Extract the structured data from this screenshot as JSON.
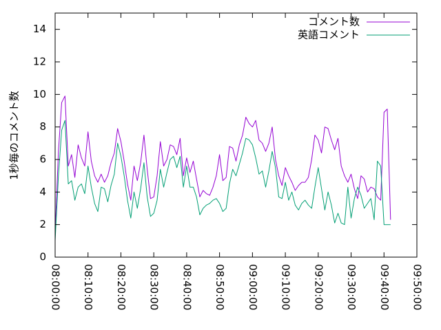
{
  "chart_data": {
    "type": "line",
    "title": "",
    "xlabel": "",
    "ylabel": "1秒毎のコメント数",
    "ylim": [
      0,
      15
    ],
    "yticks": [
      0,
      2,
      4,
      6,
      8,
      10,
      12,
      14
    ],
    "xlim": [
      "08:00:00",
      "09:50:00"
    ],
    "xticks": [
      "08:00:00",
      "08:10:00",
      "08:20:00",
      "08:30:00",
      "08:40:00",
      "08:50:00",
      "09:00:00",
      "09:10:00",
      "09:20:00",
      "09:30:00",
      "09:40:00",
      "09:50:00"
    ],
    "grid": false,
    "legend_position": "top-right",
    "x": [
      "08:00:00",
      "08:01:00",
      "08:02:00",
      "08:03:00",
      "08:04:00",
      "08:05:00",
      "08:06:00",
      "08:07:00",
      "08:08:00",
      "08:09:00",
      "08:10:00",
      "08:11:00",
      "08:12:00",
      "08:13:00",
      "08:14:00",
      "08:15:00",
      "08:16:00",
      "08:17:00",
      "08:18:00",
      "08:19:00",
      "08:20:00",
      "08:21:00",
      "08:22:00",
      "08:23:00",
      "08:24:00",
      "08:25:00",
      "08:26:00",
      "08:27:00",
      "08:28:00",
      "08:29:00",
      "08:30:00",
      "08:31:00",
      "08:32:00",
      "08:33:00",
      "08:34:00",
      "08:35:00",
      "08:36:00",
      "08:37:00",
      "08:38:00",
      "08:39:00",
      "08:40:00",
      "08:41:00",
      "08:42:00",
      "08:43:00",
      "08:44:00",
      "08:45:00",
      "08:46:00",
      "08:47:00",
      "08:48:00",
      "08:49:00",
      "08:50:00",
      "08:51:00",
      "08:52:00",
      "08:53:00",
      "08:54:00",
      "08:55:00",
      "08:56:00",
      "08:57:00",
      "08:58:00",
      "08:59:00",
      "09:00:00",
      "09:01:00",
      "09:02:00",
      "09:03:00",
      "09:04:00",
      "09:05:00",
      "09:06:00",
      "09:07:00",
      "09:08:00",
      "09:09:00",
      "09:10:00",
      "09:11:00",
      "09:12:00",
      "09:13:00",
      "09:14:00",
      "09:15:00",
      "09:16:00",
      "09:17:00",
      "09:18:00",
      "09:19:00",
      "09:20:00",
      "09:21:00",
      "09:22:00",
      "09:23:00",
      "09:24:00",
      "09:25:00",
      "09:26:00",
      "09:27:00",
      "09:28:00",
      "09:29:00",
      "09:30:00",
      "09:31:00",
      "09:32:00",
      "09:33:00",
      "09:34:00",
      "09:35:00",
      "09:36:00",
      "09:37:00",
      "09:38:00",
      "09:39:00",
      "09:40:00",
      "09:41:00",
      "09:42:00"
    ],
    "series": [
      {
        "name": "コメント数",
        "color": "#9400d3",
        "values": [
          1.5,
          6.5,
          9.5,
          9.9,
          5.6,
          6.3,
          4.9,
          6.9,
          6.1,
          5.6,
          7.7,
          5.9,
          5.0,
          4.6,
          5.1,
          4.6,
          5.0,
          5.8,
          6.4,
          7.9,
          7.1,
          5.9,
          4.5,
          3.5,
          5.6,
          4.7,
          5.8,
          7.5,
          5.4,
          3.6,
          3.7,
          5.0,
          7.1,
          5.6,
          6.0,
          6.9,
          6.8,
          6.3,
          7.3,
          5.0,
          6.1,
          5.2,
          5.9,
          4.8,
          3.7,
          4.1,
          3.9,
          3.8,
          4.3,
          5.0,
          6.3,
          4.7,
          4.9,
          6.8,
          6.7,
          5.9,
          6.9,
          7.5,
          8.6,
          8.2,
          8.0,
          8.4,
          7.2,
          7.0,
          6.5,
          7.0,
          8.0,
          6.0,
          5.0,
          4.4,
          5.5,
          5.0,
          4.6,
          4.1,
          4.4,
          4.6,
          4.6,
          4.9,
          6.0,
          7.5,
          7.2,
          6.4,
          8.0,
          7.9,
          7.2,
          6.6,
          7.3,
          5.6,
          5.0,
          4.6,
          5.1,
          4.2,
          3.6,
          5.0,
          4.8,
          4.0,
          4.3,
          4.2,
          3.7,
          3.5,
          8.9,
          9.1,
          2.3
        ]
      },
      {
        "name": "英語コメント",
        "color": "#009e73",
        "values": [
          1.0,
          5.0,
          7.8,
          8.4,
          4.5,
          4.7,
          3.5,
          4.3,
          4.5,
          3.9,
          5.6,
          4.3,
          3.3,
          2.8,
          4.3,
          4.2,
          3.4,
          4.4,
          5.1,
          7.0,
          6.2,
          5.0,
          3.5,
          2.4,
          4.0,
          3.0,
          4.2,
          5.8,
          3.7,
          2.5,
          2.7,
          3.5,
          5.4,
          4.3,
          5.2,
          6.0,
          6.2,
          5.5,
          6.2,
          4.3,
          5.6,
          4.3,
          4.3,
          3.7,
          2.6,
          3.0,
          3.2,
          3.3,
          3.5,
          3.6,
          3.3,
          2.8,
          3.0,
          4.5,
          5.4,
          5.0,
          5.7,
          6.4,
          7.3,
          7.2,
          6.9,
          6.1,
          5.1,
          5.3,
          4.3,
          5.3,
          6.5,
          5.5,
          3.7,
          3.6,
          4.6,
          3.5,
          4.0,
          3.2,
          2.9,
          3.3,
          3.5,
          3.2,
          3.0,
          4.3,
          5.5,
          4.2,
          2.9,
          4.0,
          3.2,
          2.1,
          2.7,
          2.1,
          2.0,
          4.3,
          2.4,
          3.6,
          4.3,
          3.8,
          3.0,
          3.3,
          3.6,
          2.3,
          5.9,
          5.6,
          2.0,
          2.0,
          2.0
        ]
      }
    ]
  }
}
